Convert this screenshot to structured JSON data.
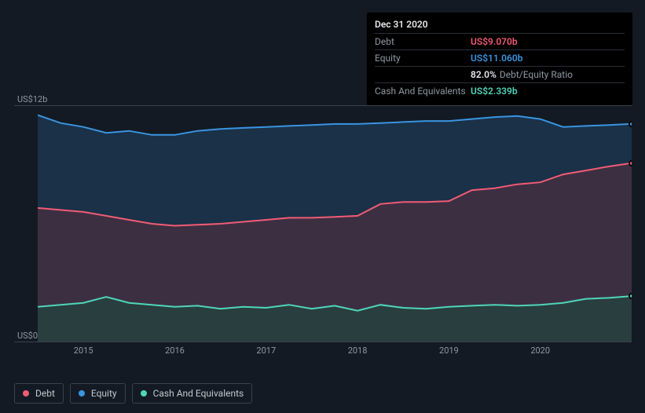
{
  "tooltip": {
    "date": "Dec 31 2020",
    "rows": [
      {
        "label": "Debt",
        "value": "US$9.070b",
        "color": "#f25b74"
      },
      {
        "label": "Equity",
        "value": "US$11.060b",
        "color": "#3a94e0"
      },
      {
        "label": "",
        "value": "82.0%",
        "extra": "Debt/Equity Ratio",
        "color": "#e6e8eb"
      },
      {
        "label": "Cash And Equivalents",
        "value": "US$2.339b",
        "color": "#4fd6b8"
      }
    ]
  },
  "chart": {
    "type": "area",
    "background": "#131a23",
    "grid_color": "#3a4149",
    "ylim": [
      0,
      12
    ],
    "y_ticks": [
      {
        "label": "US$12b",
        "value": 12
      },
      {
        "label": "US$0",
        "value": 0
      }
    ],
    "x_ticks": [
      "2015",
      "2016",
      "2017",
      "2018",
      "2019",
      "2020"
    ],
    "x_domain": [
      2014.5,
      2021.0
    ],
    "series": [
      {
        "name": "Equity",
        "color": "#3a94e0",
        "fill": "#1e3a56",
        "fill_opacity": 0.75,
        "line_width": 2,
        "points": [
          [
            2014.5,
            11.5
          ],
          [
            2014.75,
            11.1
          ],
          [
            2015.0,
            10.9
          ],
          [
            2015.25,
            10.6
          ],
          [
            2015.5,
            10.7
          ],
          [
            2015.75,
            10.5
          ],
          [
            2016.0,
            10.5
          ],
          [
            2016.25,
            10.7
          ],
          [
            2016.5,
            10.8
          ],
          [
            2016.75,
            10.85
          ],
          [
            2017.0,
            10.9
          ],
          [
            2017.25,
            10.95
          ],
          [
            2017.5,
            11.0
          ],
          [
            2017.75,
            11.05
          ],
          [
            2018.0,
            11.05
          ],
          [
            2018.25,
            11.1
          ],
          [
            2018.5,
            11.15
          ],
          [
            2018.75,
            11.2
          ],
          [
            2019.0,
            11.2
          ],
          [
            2019.25,
            11.3
          ],
          [
            2019.5,
            11.4
          ],
          [
            2019.75,
            11.45
          ],
          [
            2020.0,
            11.3
          ],
          [
            2020.25,
            10.9
          ],
          [
            2020.5,
            10.95
          ],
          [
            2020.75,
            11.0
          ],
          [
            2021.0,
            11.06
          ]
        ]
      },
      {
        "name": "Debt",
        "color": "#f25b74",
        "fill": "#4a2f40",
        "fill_opacity": 0.75,
        "line_width": 2,
        "points": [
          [
            2014.5,
            6.8
          ],
          [
            2014.75,
            6.7
          ],
          [
            2015.0,
            6.6
          ],
          [
            2015.25,
            6.4
          ],
          [
            2015.5,
            6.2
          ],
          [
            2015.75,
            6.0
          ],
          [
            2016.0,
            5.9
          ],
          [
            2016.25,
            5.95
          ],
          [
            2016.5,
            6.0
          ],
          [
            2016.75,
            6.1
          ],
          [
            2017.0,
            6.2
          ],
          [
            2017.25,
            6.3
          ],
          [
            2017.5,
            6.3
          ],
          [
            2017.75,
            6.35
          ],
          [
            2018.0,
            6.4
          ],
          [
            2018.25,
            7.0
          ],
          [
            2018.5,
            7.1
          ],
          [
            2018.75,
            7.1
          ],
          [
            2019.0,
            7.15
          ],
          [
            2019.25,
            7.7
          ],
          [
            2019.5,
            7.8
          ],
          [
            2019.75,
            8.0
          ],
          [
            2020.0,
            8.1
          ],
          [
            2020.25,
            8.5
          ],
          [
            2020.5,
            8.7
          ],
          [
            2020.75,
            8.9
          ],
          [
            2021.0,
            9.07
          ]
        ]
      },
      {
        "name": "Cash And Equivalents",
        "color": "#4fd6b8",
        "fill": "#24423e",
        "fill_opacity": 0.8,
        "line_width": 2,
        "points": [
          [
            2014.5,
            1.8
          ],
          [
            2014.75,
            1.9
          ],
          [
            2015.0,
            2.0
          ],
          [
            2015.25,
            2.3
          ],
          [
            2015.5,
            2.0
          ],
          [
            2015.75,
            1.9
          ],
          [
            2016.0,
            1.8
          ],
          [
            2016.25,
            1.85
          ],
          [
            2016.5,
            1.7
          ],
          [
            2016.75,
            1.8
          ],
          [
            2017.0,
            1.75
          ],
          [
            2017.25,
            1.9
          ],
          [
            2017.5,
            1.7
          ],
          [
            2017.75,
            1.85
          ],
          [
            2018.0,
            1.6
          ],
          [
            2018.25,
            1.9
          ],
          [
            2018.5,
            1.75
          ],
          [
            2018.75,
            1.7
          ],
          [
            2019.0,
            1.8
          ],
          [
            2019.25,
            1.85
          ],
          [
            2019.5,
            1.9
          ],
          [
            2019.75,
            1.85
          ],
          [
            2020.0,
            1.9
          ],
          [
            2020.25,
            2.0
          ],
          [
            2020.5,
            2.2
          ],
          [
            2020.75,
            2.25
          ],
          [
            2021.0,
            2.339
          ]
        ]
      }
    ]
  },
  "legend": [
    {
      "label": "Debt",
      "color": "#f25b74"
    },
    {
      "label": "Equity",
      "color": "#3a94e0"
    },
    {
      "label": "Cash And Equivalents",
      "color": "#4fd6b8"
    }
  ]
}
